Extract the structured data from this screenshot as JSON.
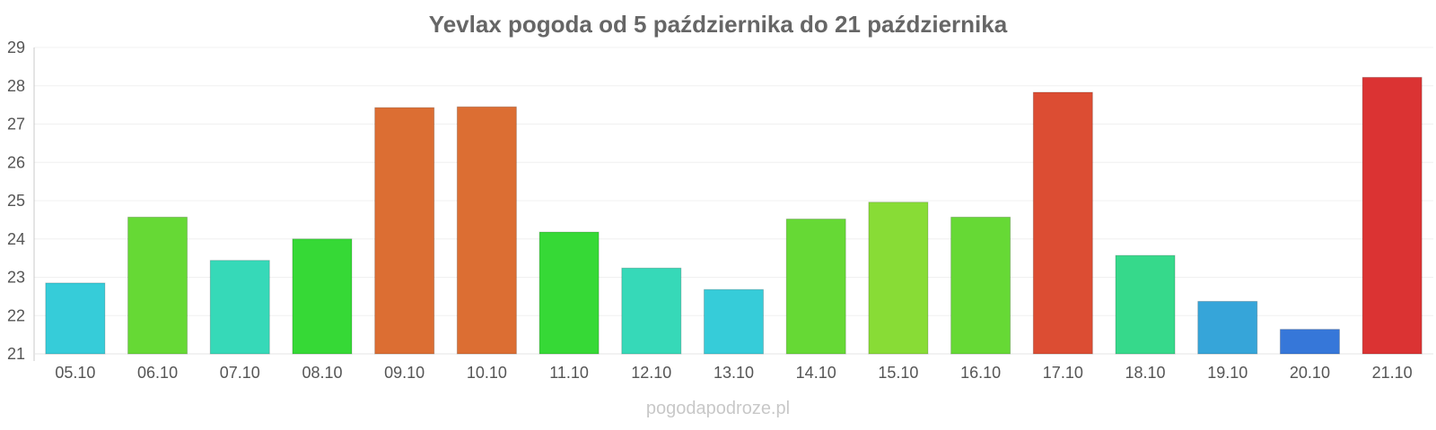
{
  "chart_data": {
    "type": "bar",
    "title": "Yevlax pogoda od 5 października do 21 października",
    "xlabel": "",
    "ylabel": "",
    "categories": [
      "05.10",
      "06.10",
      "07.10",
      "08.10",
      "09.10",
      "10.10",
      "11.10",
      "12.10",
      "13.10",
      "14.10",
      "15.10",
      "16.10",
      "17.10",
      "18.10",
      "19.10",
      "20.10",
      "21.10"
    ],
    "values": [
      22.85,
      24.57,
      23.44,
      24.0,
      27.43,
      27.45,
      24.18,
      23.24,
      22.68,
      24.52,
      24.96,
      24.57,
      27.83,
      23.57,
      22.37,
      21.64,
      28.22
    ],
    "colors": [
      "#36ccd9",
      "#66d935",
      "#36d9b8",
      "#36d936",
      "#dc6e33",
      "#dc6e33",
      "#36d936",
      "#36d9b8",
      "#36ccd9",
      "#66d935",
      "#88dc36",
      "#66d935",
      "#dc4d33",
      "#36d98b",
      "#36a5d9",
      "#3677d9",
      "#db3333"
    ],
    "ylim": [
      21,
      29
    ],
    "yticks": [
      "21",
      "22",
      "23",
      "24",
      "25",
      "26",
      "27",
      "28",
      "29"
    ],
    "grid": true,
    "legend": "none"
  },
  "watermark": "pogodapodroze.pl"
}
